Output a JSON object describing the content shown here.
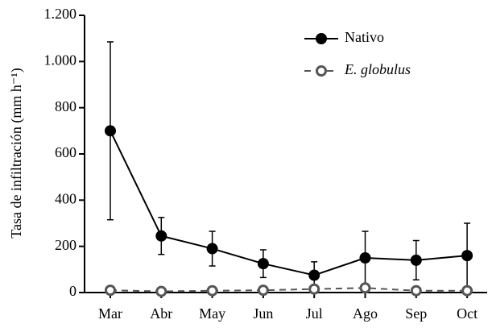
{
  "chart_data": {
    "type": "line",
    "y_label": "Tasa de infiltración  (mm h⁻¹)",
    "categories": [
      "Mar",
      "Abr",
      "May",
      "Jun",
      "Jul",
      "Ago",
      "Sep",
      "Oct"
    ],
    "series": [
      {
        "name": "Nativo",
        "color": "#000000",
        "dash": false,
        "values": [
          700,
          245,
          190,
          125,
          75,
          150,
          140,
          160
        ],
        "errors": [
          385,
          80,
          75,
          60,
          58,
          115,
          85,
          140
        ]
      },
      {
        "name": "E. globulus",
        "color": "#555555",
        "dash": true,
        "values": [
          10,
          5,
          8,
          10,
          15,
          20,
          8,
          8
        ]
      }
    ],
    "ylim": [
      0,
      1200
    ],
    "yticks": [
      0,
      200,
      400,
      600,
      800,
      {
        "value": 1000,
        "label": "1.000"
      },
      {
        "value": 1200,
        "label": "1.200"
      }
    ]
  }
}
